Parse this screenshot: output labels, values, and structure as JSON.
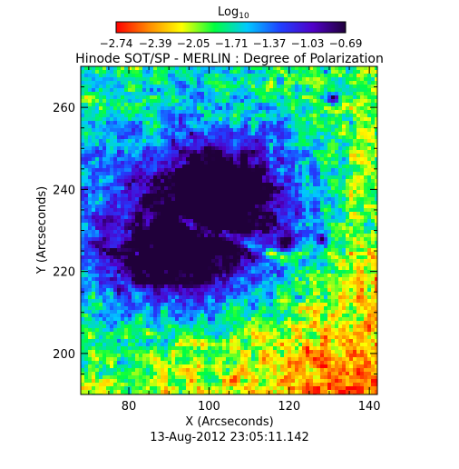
{
  "chart_data": {
    "type": "heatmap",
    "title": "Hinode SOT/SP - MERLIN : Degree of Polarization",
    "colorbar": {
      "label_base": "Log",
      "label_sub": "10",
      "tick_labels": [
        "-2.74",
        "-2.39",
        "-2.05",
        "-1.71",
        "-1.37",
        "-1.03",
        "-0.69"
      ],
      "range": [
        -2.74,
        -0.69
      ],
      "colors": [
        "#ff0000",
        "#ff8a00",
        "#ffff00",
        "#00ff40",
        "#00c8ff",
        "#2040ff",
        "#5000c8",
        "#20003a"
      ]
    },
    "xlabel": "X (Arcseconds)",
    "ylabel": "Y (Arcseconds)",
    "xlim": [
      68,
      142
    ],
    "ylim": [
      190,
      270
    ],
    "xticks": [
      80,
      100,
      120,
      140
    ],
    "yticks": [
      200,
      220,
      240,
      260
    ],
    "footer": "13-Aug-2012 23:05:11.142"
  }
}
